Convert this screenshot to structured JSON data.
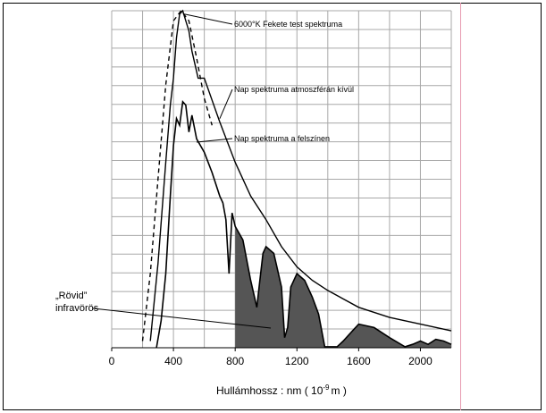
{
  "chart_data": {
    "type": "line",
    "title": "",
    "xlabel_main": "Hullámhossz : nm ( 10",
    "xlabel_sup": "-9",
    "xlabel_end": "m )",
    "ylabel": "",
    "xlim": [
      0,
      2200
    ],
    "x_ticks": [
      0,
      400,
      800,
      1200,
      1600,
      2000
    ],
    "grid": true,
    "series": [
      {
        "name": "6000°K Fekete test spektruma",
        "style": "dashed",
        "x": [
          200,
          250,
          300,
          350,
          400,
          450,
          500,
          550,
          600,
          650
        ],
        "y": [
          0.02,
          0.22,
          0.5,
          0.78,
          0.97,
          1.0,
          0.97,
          0.86,
          0.74,
          0.66
        ]
      },
      {
        "name": "Nap spektruma atmoszférán kívül",
        "style": "solid",
        "x": [
          250,
          300,
          350,
          380,
          400,
          420,
          440,
          460,
          480,
          500,
          520,
          560,
          600,
          700,
          800,
          900,
          1000,
          1100,
          1200,
          1300,
          1400,
          1600,
          1800,
          2000,
          2200
        ],
        "y": [
          0.02,
          0.25,
          0.55,
          0.72,
          0.8,
          0.92,
          0.99,
          1.0,
          0.97,
          0.94,
          0.88,
          0.8,
          0.8,
          0.67,
          0.55,
          0.45,
          0.38,
          0.3,
          0.24,
          0.2,
          0.17,
          0.12,
          0.09,
          0.07,
          0.05
        ]
      },
      {
        "name": "Nap spektruma a felszínen",
        "style": "solid",
        "x": [
          290,
          320,
          350,
          380,
          400,
          420,
          440,
          460,
          480,
          500,
          520,
          550,
          600,
          650,
          700,
          720,
          740,
          760,
          780,
          800,
          850,
          900,
          940,
          960,
          980,
          1000,
          1050,
          1100,
          1120,
          1140,
          1160,
          1200,
          1250,
          1300,
          1340,
          1380,
          1420,
          1460,
          1500,
          1560,
          1600,
          1700,
          1800,
          1900,
          1950,
          2000,
          2050,
          2100,
          2150,
          2200
        ],
        "y": [
          0.0,
          0.08,
          0.22,
          0.45,
          0.6,
          0.68,
          0.66,
          0.73,
          0.72,
          0.64,
          0.69,
          0.62,
          0.58,
          0.52,
          0.45,
          0.43,
          0.38,
          0.22,
          0.4,
          0.36,
          0.32,
          0.2,
          0.12,
          0.2,
          0.28,
          0.3,
          0.28,
          0.18,
          0.03,
          0.06,
          0.18,
          0.22,
          0.2,
          0.15,
          0.1,
          0.003,
          0.003,
          0.003,
          0.02,
          0.05,
          0.07,
          0.06,
          0.03,
          0.003,
          0.01,
          0.02,
          0.01,
          0.025,
          0.02,
          0.01
        ]
      }
    ],
    "shaded_region_start": 800,
    "annotation_labels": [
      "6000°K Fekete test spektruma",
      "Nap spektruma atmoszférán kívül",
      "Nap spektruma a felszínen"
    ],
    "callout": [
      "„Rövid”",
      "infravörös"
    ]
  }
}
